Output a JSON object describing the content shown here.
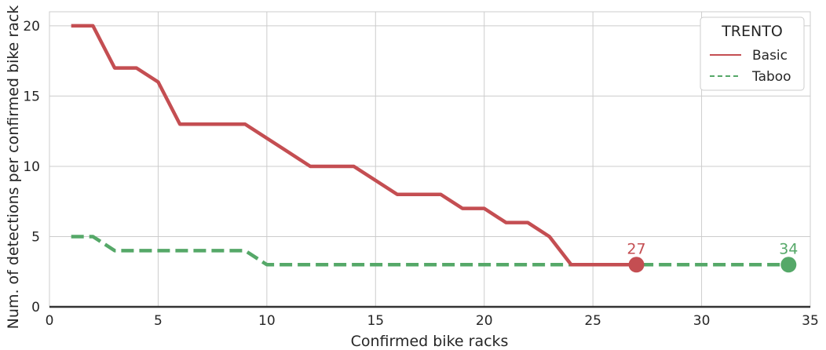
{
  "chart_data": {
    "type": "line",
    "xlabel": "Confirmed bike racks",
    "ylabel": "Num. of detections per confirmed bike rack",
    "xlim": [
      0,
      35
    ],
    "ylim": [
      0,
      21
    ],
    "xticks": [
      0,
      5,
      10,
      15,
      20,
      25,
      30,
      35
    ],
    "yticks": [
      0,
      5,
      10,
      15,
      20
    ],
    "grid": true,
    "legend": {
      "title": "TRENTO",
      "placement": "top-right"
    },
    "series": [
      {
        "name": "Basic",
        "style": "solid",
        "color": "#c44e52",
        "x": [
          1,
          2,
          3,
          4,
          5,
          6,
          7,
          8,
          9,
          10,
          11,
          12,
          13,
          14,
          15,
          16,
          17,
          18,
          19,
          20,
          21,
          22,
          23,
          24,
          25,
          26,
          27
        ],
        "y": [
          20,
          20,
          17,
          17,
          16,
          13,
          13,
          13,
          13,
          12,
          11,
          10,
          10,
          10,
          9,
          8,
          8,
          8,
          7,
          7,
          6,
          6,
          5,
          3,
          3,
          3,
          3
        ],
        "end_label": "27"
      },
      {
        "name": "Taboo",
        "style": "dashed",
        "color": "#55a868",
        "x": [
          1,
          2,
          3,
          4,
          5,
          6,
          7,
          8,
          9,
          10,
          11,
          12,
          13,
          14,
          15,
          16,
          17,
          18,
          19,
          20,
          21,
          22,
          23,
          24,
          25,
          26,
          27,
          28,
          29,
          30,
          31,
          32,
          33,
          34
        ],
        "y": [
          5,
          5,
          4,
          4,
          4,
          4,
          4,
          4,
          4,
          3,
          3,
          3,
          3,
          3,
          3,
          3,
          3,
          3,
          3,
          3,
          3,
          3,
          3,
          3,
          3,
          3,
          3,
          3,
          3,
          3,
          3,
          3,
          3,
          3
        ],
        "end_label": "34"
      }
    ]
  }
}
